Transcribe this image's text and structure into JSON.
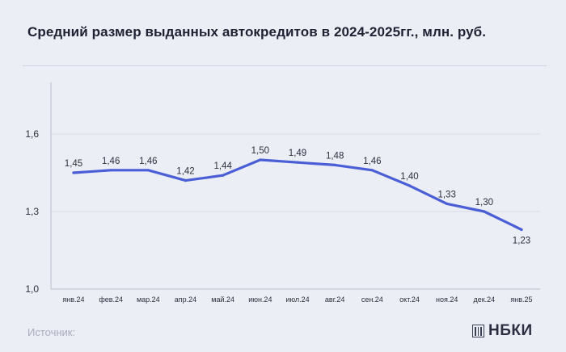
{
  "header": {
    "title": "Средний размер выданных автокредитов в 2024-2025гг., млн. руб."
  },
  "footer": {
    "source_label": "Источник:",
    "logo_text": "НБКИ"
  },
  "colors": {
    "line": "#4a5fd6",
    "axis": "#b9bdcb",
    "grid": "#d6d9e4",
    "text": "#2b2f3f",
    "background": "#eceef5"
  },
  "chart_data": {
    "type": "line",
    "title": "Средний размер выданных автокредитов в 2024-2025гг., млн. руб.",
    "xlabel": "",
    "ylabel": "",
    "categories": [
      "янв.24",
      "фев.24",
      "мар.24",
      "апр.24",
      "май.24",
      "июн.24",
      "июл.24",
      "авг.24",
      "сен.24",
      "окт.24",
      "ноя.24",
      "дек.24",
      "янв.25"
    ],
    "series": [
      {
        "values": [
          1.45,
          1.46,
          1.46,
          1.42,
          1.44,
          1.5,
          1.49,
          1.48,
          1.46,
          1.4,
          1.33,
          1.3,
          1.23
        ],
        "labels": [
          "1,45",
          "1,46",
          "1,46",
          "1,42",
          "1,44",
          "1,50",
          "1,49",
          "1,48",
          "1,46",
          "1,40",
          "1,33",
          "1,30",
          "1,23"
        ]
      }
    ],
    "ylim": [
      1.0,
      1.8
    ],
    "yticks": [
      1.0,
      1.3,
      1.6
    ],
    "ytick_labels": [
      "1,0",
      "1,3",
      "1,6"
    ],
    "grid": true
  }
}
